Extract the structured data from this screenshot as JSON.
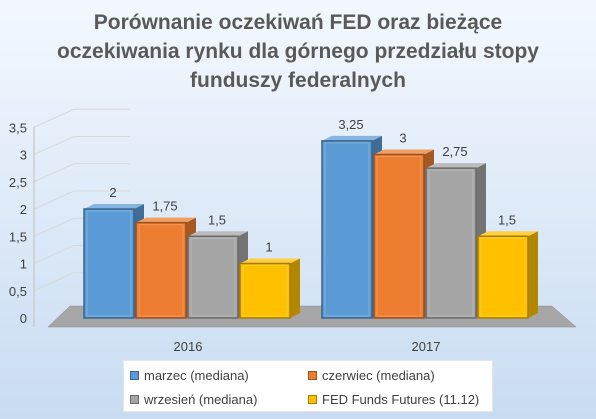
{
  "chart_data": {
    "type": "bar",
    "title": "Porównanie oczekiwań FED oraz bieżące oczekiwania rynku dla górnego przedziału stopy funduszy federalnych",
    "categories": [
      "2016",
      "2017"
    ],
    "series": [
      {
        "name": "marzec (mediana)",
        "values": [
          2,
          3.25
        ],
        "labels": [
          "2",
          "3,25"
        ],
        "color": "#5b9bd5"
      },
      {
        "name": "czerwiec (mediana)",
        "values": [
          1.75,
          3
        ],
        "labels": [
          "1,75",
          "3"
        ],
        "color": "#ed7d31"
      },
      {
        "name": "wrzesień (mediana)",
        "values": [
          1.5,
          2.75
        ],
        "labels": [
          "1,5",
          "2,75"
        ],
        "color": "#a5a5a5"
      },
      {
        "name": "FED Funds Futures (11.12)",
        "values": [
          1,
          1.5
        ],
        "labels": [
          "1",
          "1,5"
        ],
        "color": "#ffc000"
      }
    ],
    "yticks": [
      0,
      0.5,
      1,
      1.5,
      2,
      2.5,
      3,
      3.5
    ],
    "ytick_labels": [
      "0",
      "0,5",
      "1",
      "1,5",
      "2",
      "2,5",
      "3",
      "3,5"
    ],
    "ylim": [
      0,
      3.5
    ],
    "grid": true,
    "legend": "bottom"
  }
}
